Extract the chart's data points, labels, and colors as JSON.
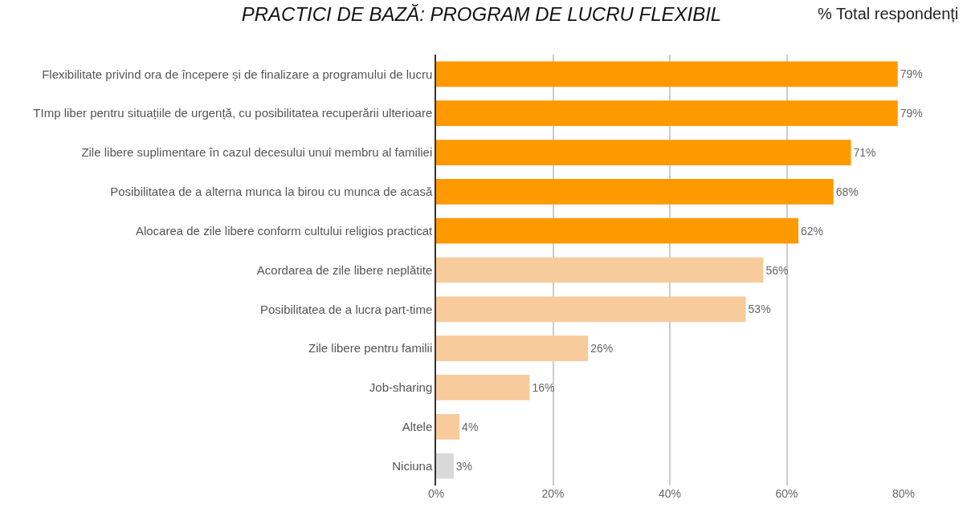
{
  "chart_data": {
    "type": "bar",
    "orientation": "horizontal",
    "title": "PRACTICI DE BAZĂ: PROGRAM DE LUCRU FLEXIBIL",
    "subtitle": "% Total respondenți",
    "categories": [
      "Flexibilitate privind ora de începere și de finalizare a programului de lucru",
      "TImp liber pentru situațiile de urgență, cu posibilitatea recuperării ulterioare",
      "Zile libere suplimentare în cazul decesului unui membru al familiei",
      "Posibilitatea de a alterna munca la birou cu munca de acasă",
      "Alocarea de zile libere conform cultului religios practicat",
      "Acordarea de zile libere neplătite",
      "Posibilitatea de a lucra part-time",
      "Zile libere pentru familii",
      "Job-sharing",
      "Altele",
      "Niciuna"
    ],
    "values": [
      79,
      79,
      71,
      68,
      62,
      56,
      53,
      26,
      16,
      4,
      3
    ],
    "value_labels": [
      "79%",
      "79%",
      "71%",
      "68%",
      "62%",
      "56%",
      "53%",
      "26%",
      "16%",
      "4%",
      "3%"
    ],
    "colors": [
      "#ff9900",
      "#ff9900",
      "#ff9900",
      "#ff9900",
      "#ff9900",
      "#f8cb9c",
      "#f8cb9c",
      "#f8cb9c",
      "#f8cb9c",
      "#f8cb9c",
      "#d9d9d9"
    ],
    "xlim": [
      0,
      80
    ],
    "xticks": [
      {
        "value": 0,
        "label": "0%"
      },
      {
        "value": 20,
        "label": "20%"
      },
      {
        "value": 40,
        "label": "40%"
      },
      {
        "value": 60,
        "label": "60%"
      },
      {
        "value": 80,
        "label": "80%"
      }
    ],
    "grid": "x"
  }
}
